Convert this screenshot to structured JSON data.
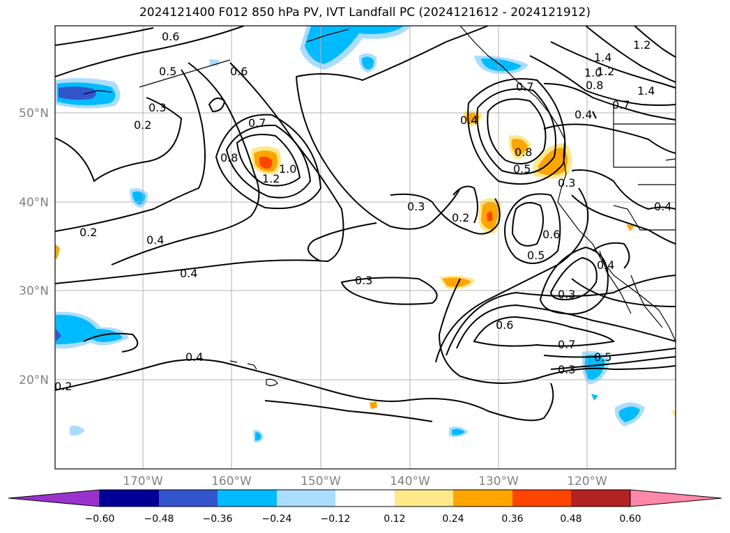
{
  "title": "2024121400 F012 850 hPa PV, IVT Landfall PC (2024121612 - 2024121912)",
  "map": {
    "lat_labels": [
      "50°N",
      "40°N",
      "30°N",
      "20°N"
    ],
    "lon_labels": [
      "170°W",
      "160°W",
      "150°W",
      "140°W",
      "130°W",
      "120°W"
    ],
    "contour_labels": [
      "0.6",
      "0.5",
      "0.3",
      "0.2",
      "0.6",
      "0.7",
      "0.8",
      "1.2",
      "1.0",
      "0.2",
      "0.4",
      "0.4",
      "0.3",
      "0.3",
      "0.2",
      "0.5",
      "0.6",
      "0.3",
      "0.6",
      "0.7",
      "0.5",
      "0.3",
      "0.4",
      "0.2",
      "0.8",
      "0.5",
      "0.3",
      "0.4",
      "0.7",
      "1.4",
      "1.2",
      "1.0",
      "0.8",
      "0.7",
      "1.2",
      "1.4",
      "0.4",
      "0.4",
      "0.4"
    ]
  },
  "colorbar": {
    "ticks": [
      "−0.60",
      "−0.48",
      "−0.36",
      "−0.24",
      "−0.12",
      "0.12",
      "0.24",
      "0.36",
      "0.48",
      "0.60"
    ],
    "colors": [
      "#9933cc",
      "#000099",
      "#3355cc",
      "#00bbff",
      "#aaddff",
      "#ffffff",
      "#ffe88a",
      "#ffa500",
      "#ff4400",
      "#b22222",
      "#ff88aa"
    ]
  }
}
